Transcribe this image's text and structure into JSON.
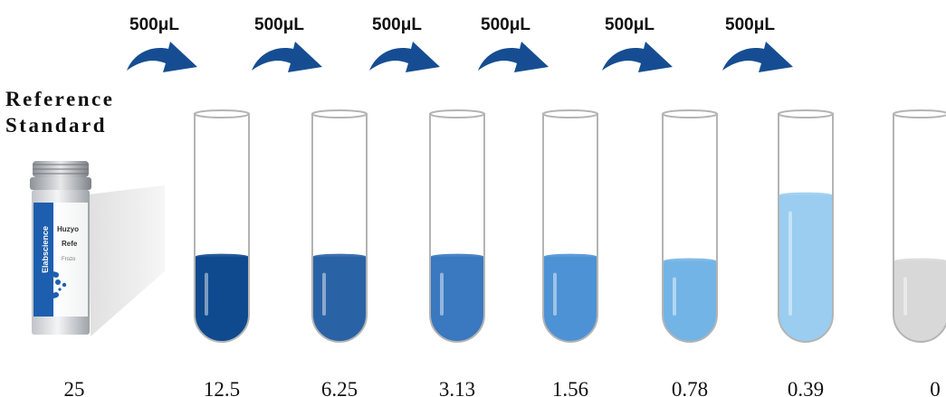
{
  "reference": {
    "title_line1": "Reference",
    "title_line2": "Standard",
    "bottle_label_lines": [
      "Huzyo",
      "Refe",
      "Frozo"
    ],
    "bottle_brand": "Elabscience"
  },
  "transfer": {
    "volume_label": "500μL",
    "count": 6
  },
  "concentrations": [
    "25",
    "12.5",
    "6.25",
    "3.13",
    "1.56",
    "0.78",
    "0.39",
    "0"
  ],
  "tubes": [
    {
      "concentration": "12.5",
      "fill_fraction": 0.38,
      "color": "#0f4a8e"
    },
    {
      "concentration": "6.25",
      "fill_fraction": 0.38,
      "color": "#2a62a6"
    },
    {
      "concentration": "3.13",
      "fill_fraction": 0.38,
      "color": "#3a78bf"
    },
    {
      "concentration": "1.56",
      "fill_fraction": 0.38,
      "color": "#4d92d4"
    },
    {
      "concentration": "0.78",
      "fill_fraction": 0.36,
      "color": "#72b4e6"
    },
    {
      "concentration": "0.39",
      "fill_fraction": 0.66,
      "color": "#9acdf0"
    },
    {
      "concentration": "0",
      "fill_fraction": 0.36,
      "color": "#d8d8d8"
    }
  ],
  "colors": {
    "arrow": "#164d92",
    "tube_outline": "#b4b4b4",
    "text": "#111111"
  }
}
